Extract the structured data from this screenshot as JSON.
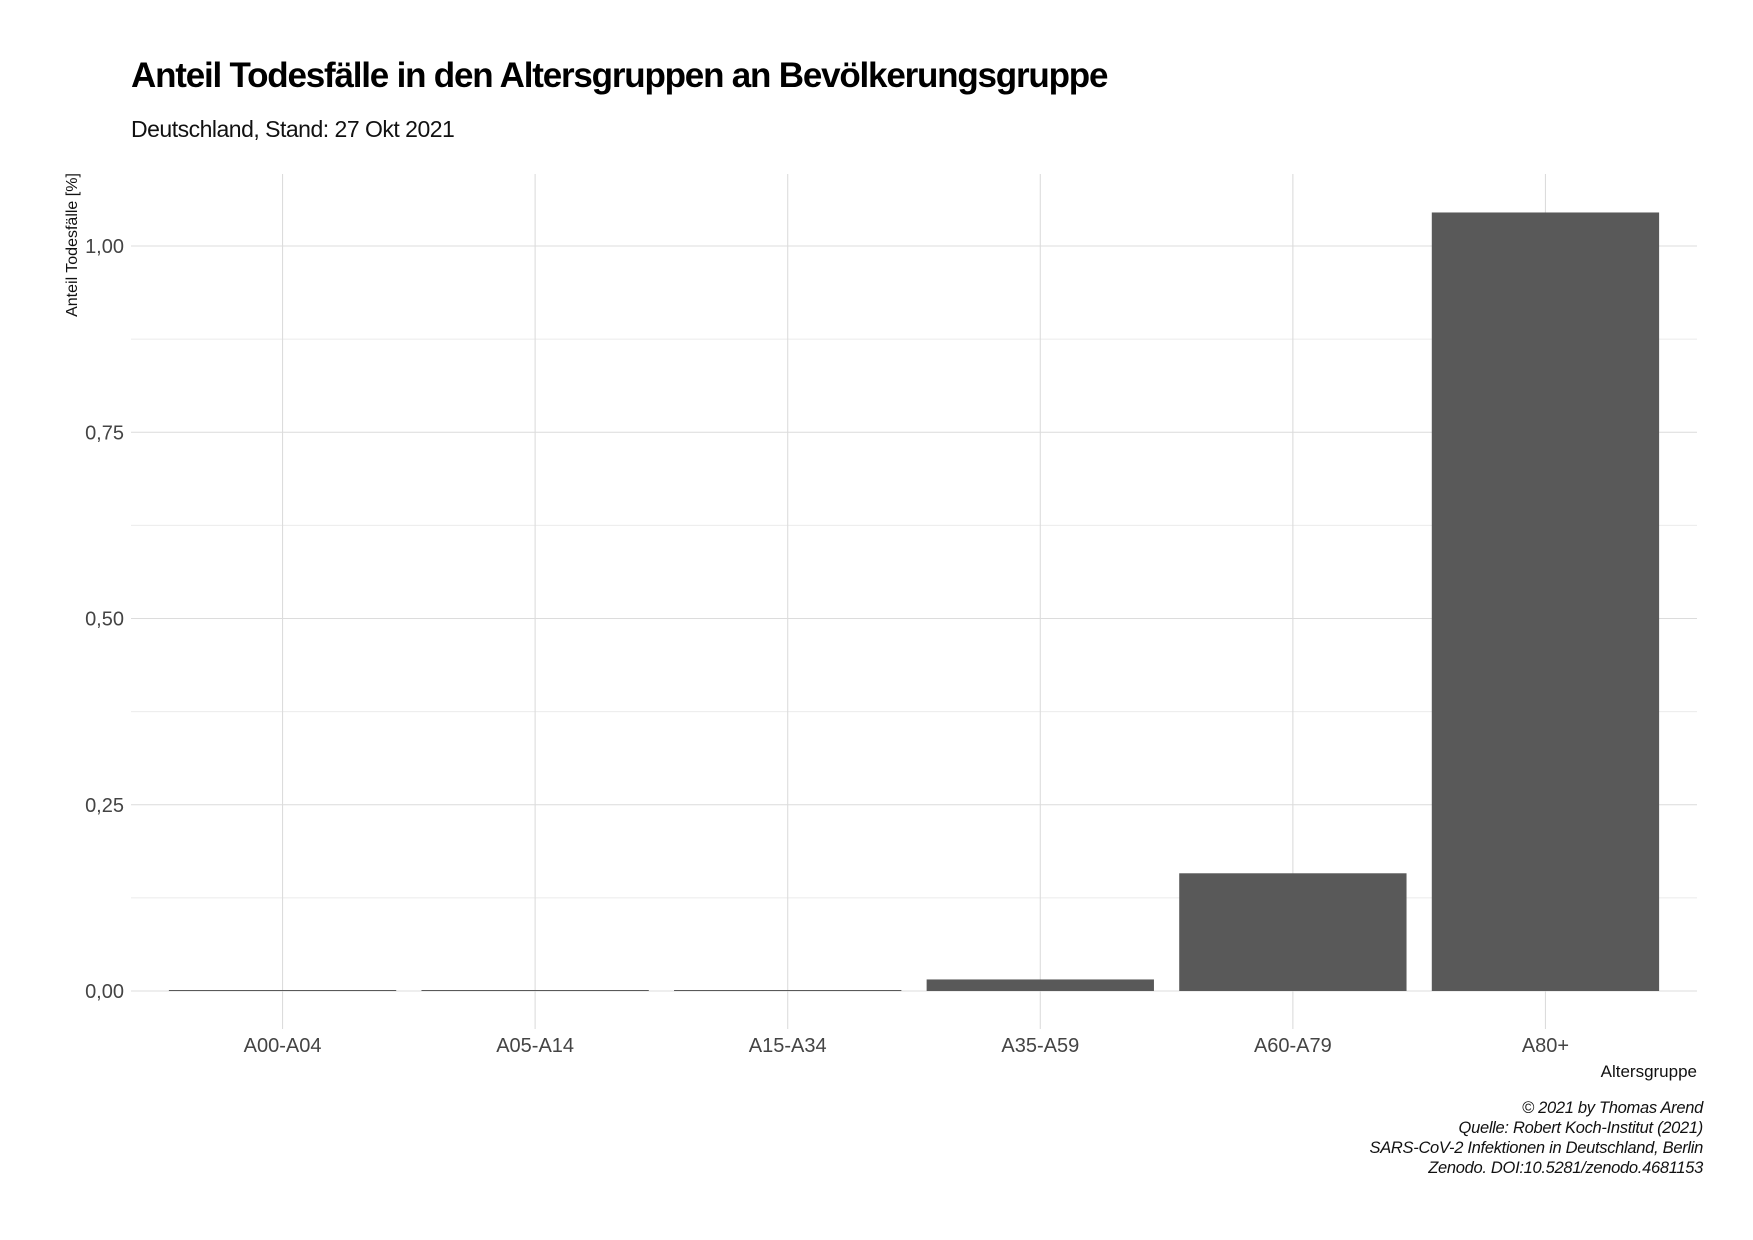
{
  "chart_data": {
    "type": "bar",
    "title": "Anteil Todesfälle in den Altersgruppen an Bevölkerungsgruppe",
    "subtitle": "Deutschland, Stand: 27 Okt 2021",
    "xlabel": "Altersgruppe",
    "ylabel": "Anteil Todesfälle [%]",
    "categories": [
      "A00-A04",
      "A05-A14",
      "A15-A34",
      "A35-A59",
      "A60-A79",
      "A80+"
    ],
    "values": [
      0.0003,
      0.0001,
      0.0012,
      0.0155,
      0.158,
      1.045
    ],
    "ylim": [
      0,
      1.1
    ],
    "yticks": [
      0,
      0.25,
      0.5,
      0.75,
      1.0
    ],
    "ytick_labels": [
      "0,00",
      "0,25",
      "0,50",
      "0,75",
      "1,00"
    ],
    "bar_color": "#595959",
    "grid": true,
    "caption": [
      "© 2021 by Thomas Arend",
      "Quelle: Robert Koch-Institut (2021)",
      "SARS-CoV-2 Infektionen in Deutschland, Berlin",
      "Zenodo. DOI:10.5281/zenodo.4681153"
    ]
  }
}
